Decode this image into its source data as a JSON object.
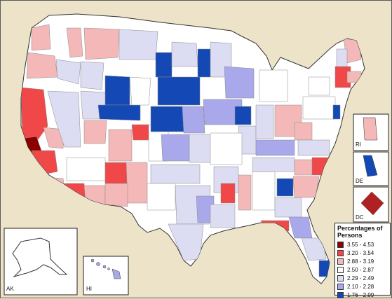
{
  "map": {
    "insets": {
      "ak": "AK",
      "hi": "HI",
      "ri": "RI",
      "de": "DE",
      "dc": "DC"
    },
    "legend": {
      "title": "Percentages of Persons",
      "items": [
        {
          "label": "3.55 - 4.53",
          "color": "#8b0000"
        },
        {
          "label": "3.20 - 3.54",
          "color": "#f04848"
        },
        {
          "label": "2.88 - 3.19",
          "color": "#f4b8b8"
        },
        {
          "label": "2.50 - 2.87",
          "color": "#ffffff"
        },
        {
          "label": "2.29 - 2.49",
          "color": "#dcdcf2"
        },
        {
          "label": "2.10 - 2.28",
          "color": "#a8a8ea"
        },
        {
          "label": "1.76 - 2.09",
          "color": "#1448b4"
        }
      ]
    }
  }
}
